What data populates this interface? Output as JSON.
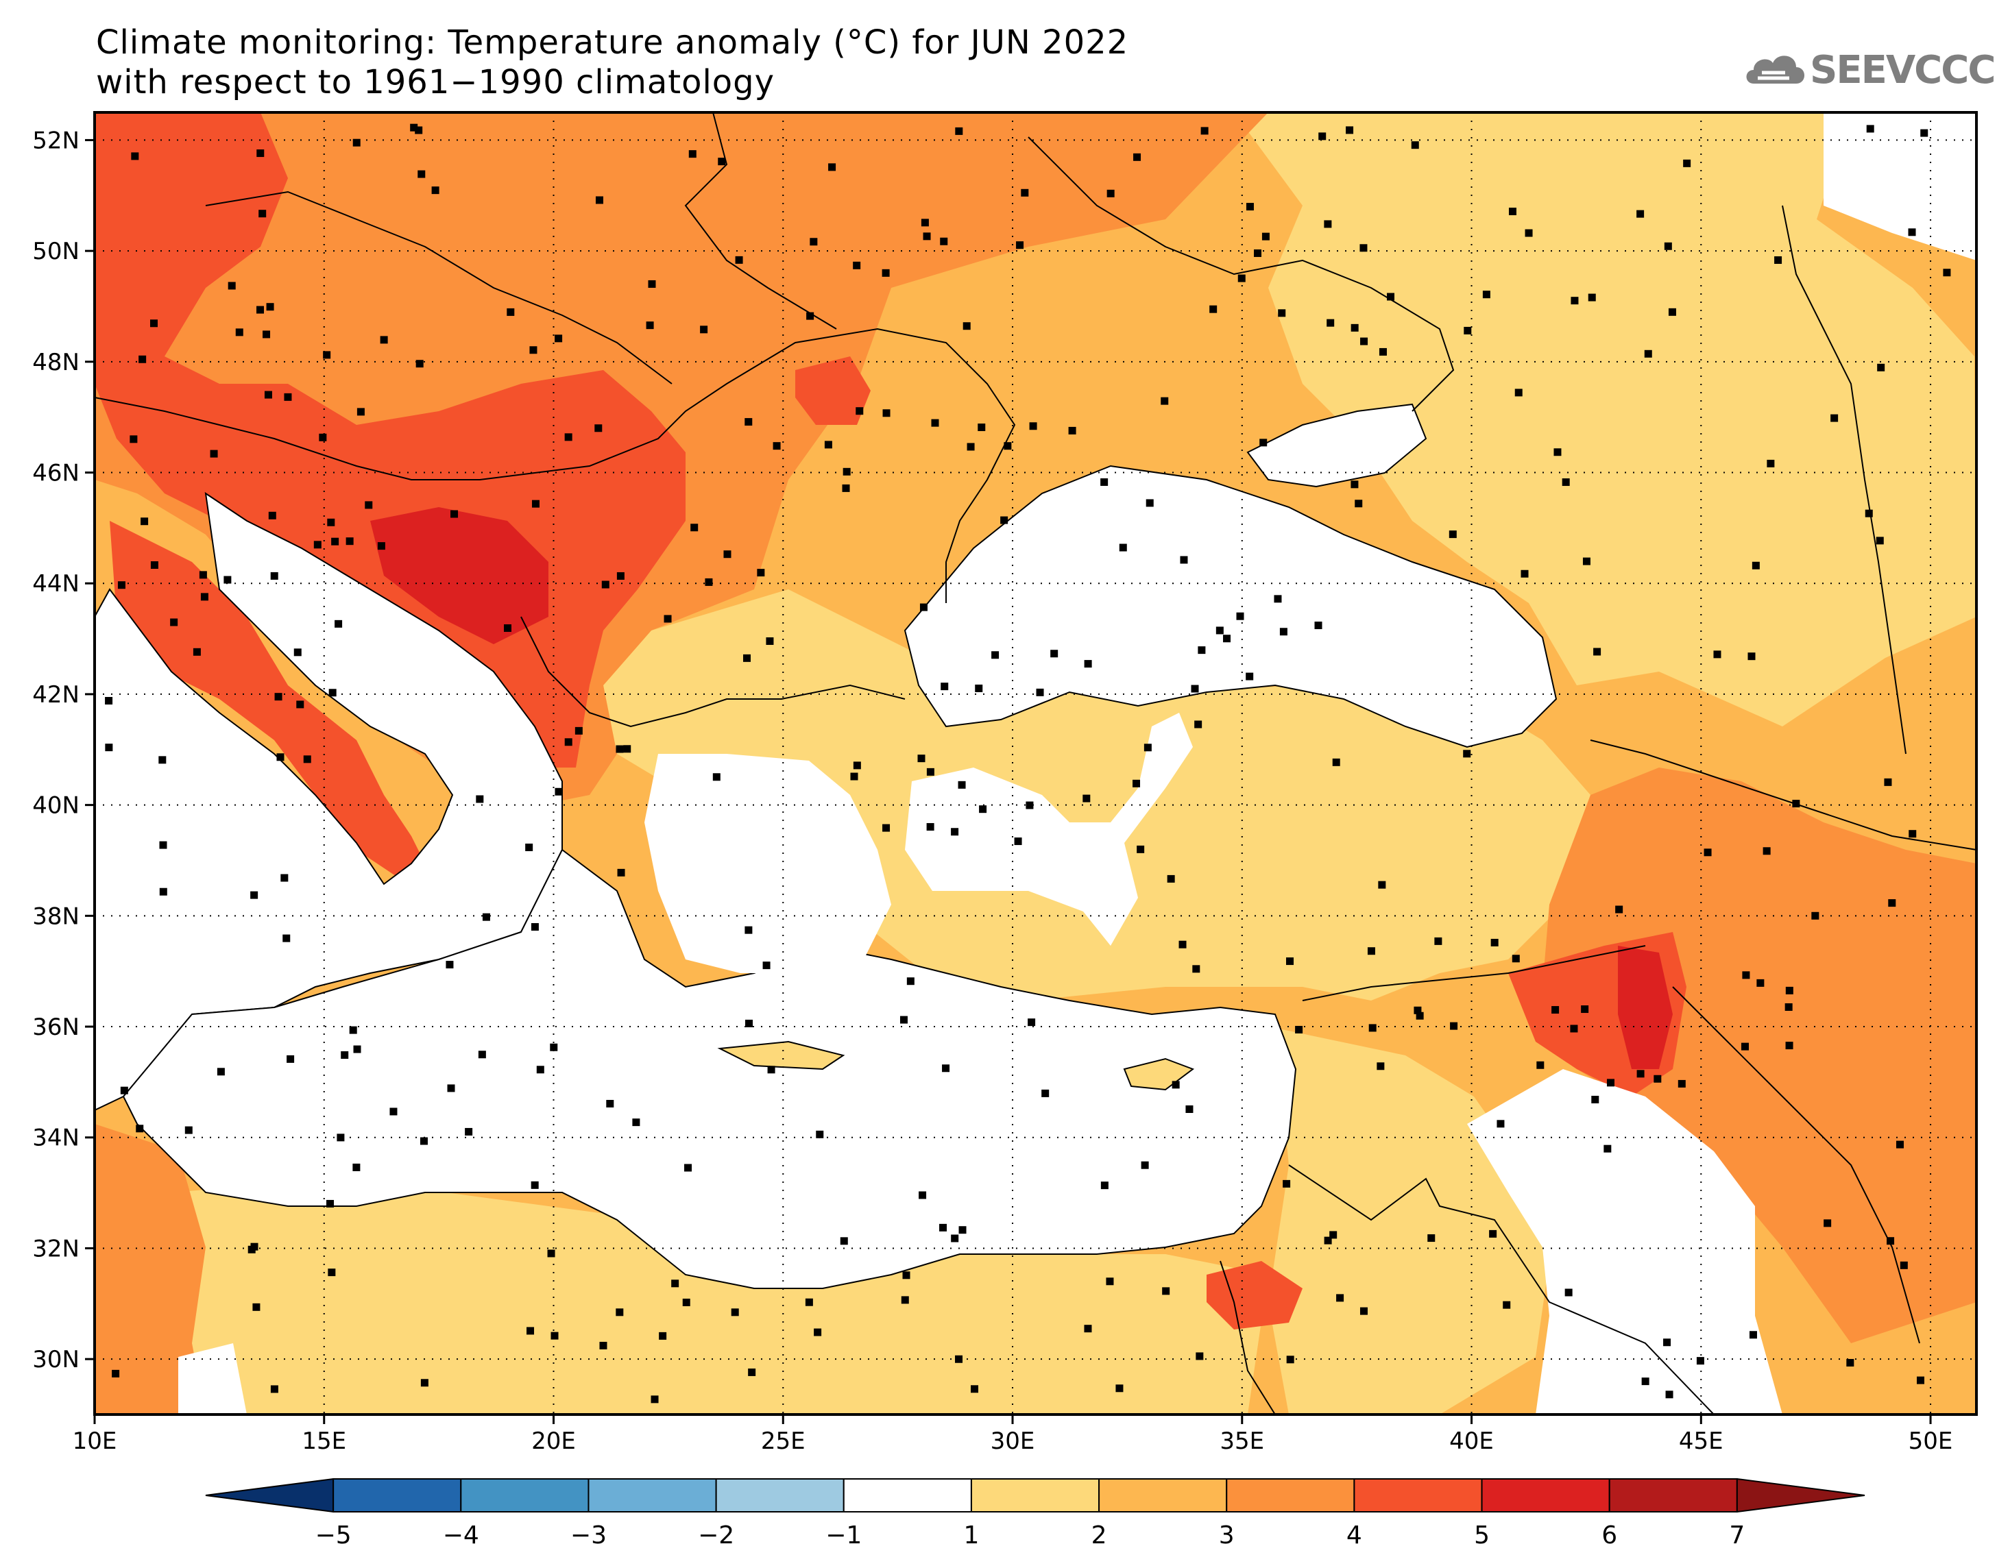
{
  "title": {
    "line1": "Climate monitoring: Temperature anomaly (°C) for JUN 2022",
    "line2": "with respect to 1961−1990 climatology"
  },
  "logo": {
    "text": "SEEVCCC",
    "icon": "cloud-icon"
  },
  "map": {
    "lon_range": [
      10,
      51
    ],
    "lat_range": [
      29,
      52.5
    ],
    "lon_ticks": [
      {
        "value": 10,
        "label": "10E"
      },
      {
        "value": 15,
        "label": "15E"
      },
      {
        "value": 20,
        "label": "20E"
      },
      {
        "value": 25,
        "label": "25E"
      },
      {
        "value": 30,
        "label": "30E"
      },
      {
        "value": 35,
        "label": "35E"
      },
      {
        "value": 40,
        "label": "40E"
      },
      {
        "value": 45,
        "label": "45E"
      },
      {
        "value": 50,
        "label": "50E"
      }
    ],
    "lat_ticks": [
      {
        "value": 30,
        "label": "30N"
      },
      {
        "value": 32,
        "label": "32N"
      },
      {
        "value": 34,
        "label": "34N"
      },
      {
        "value": 36,
        "label": "36N"
      },
      {
        "value": 38,
        "label": "38N"
      },
      {
        "value": 40,
        "label": "40N"
      },
      {
        "value": 42,
        "label": "42N"
      },
      {
        "value": 44,
        "label": "44N"
      },
      {
        "value": 46,
        "label": "46N"
      },
      {
        "value": 48,
        "label": "48N"
      },
      {
        "value": 50,
        "label": "50N"
      },
      {
        "value": 52,
        "label": "52N"
      }
    ],
    "gridlines": "dotted"
  },
  "colorbar": {
    "labels": [
      "−5",
      "−4",
      "−3",
      "−2",
      "−1",
      "1",
      "2",
      "3",
      "4",
      "5",
      "6",
      "7"
    ],
    "bins": [
      {
        "from": -6,
        "to": -5,
        "color": "#08306b"
      },
      {
        "from": -5,
        "to": -4,
        "color": "#2166ac"
      },
      {
        "from": -4,
        "to": -3,
        "color": "#4393c3"
      },
      {
        "from": -3,
        "to": -2,
        "color": "#6baed6"
      },
      {
        "from": -2,
        "to": -1,
        "color": "#9ecae1"
      },
      {
        "from": -1,
        "to": 1,
        "color": "#ffffff"
      },
      {
        "from": 1,
        "to": 2,
        "color": "#fdd97a"
      },
      {
        "from": 2,
        "to": 3,
        "color": "#fdb750"
      },
      {
        "from": 3,
        "to": 4,
        "color": "#fb913c"
      },
      {
        "from": 4,
        "to": 5,
        "color": "#f4522c"
      },
      {
        "from": 5,
        "to": 6,
        "color": "#dc2120"
      },
      {
        "from": 6,
        "to": 7,
        "color": "#b31b1b"
      },
      {
        "from": 7,
        "to": 8,
        "color": "#8b1414"
      }
    ]
  }
}
